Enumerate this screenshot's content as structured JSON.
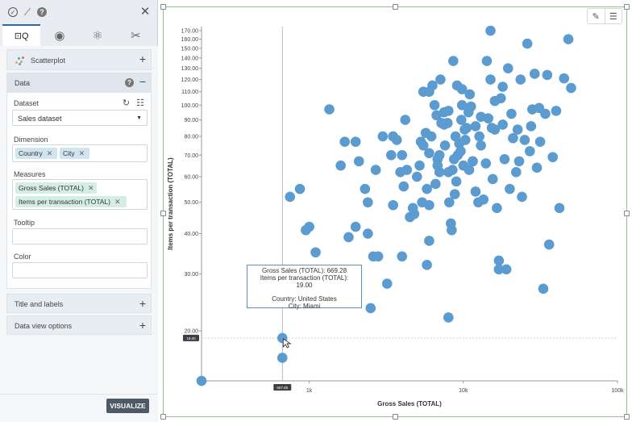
{
  "panel": {
    "tabs": [
      {
        "name": "data-analysis-icon",
        "glyph": "⊡Q"
      },
      {
        "name": "eye-icon",
        "glyph": "◉"
      },
      {
        "name": "atom-icon",
        "glyph": "⚛"
      },
      {
        "name": "tools-icon",
        "glyph": "✂"
      }
    ],
    "scatter": {
      "label": "Scatterplot"
    },
    "data": {
      "header": "Data",
      "dataset_label": "Dataset",
      "dataset_value": "Sales dataset",
      "dimension_label": "Dimension",
      "dimensions": [
        "Country",
        "City"
      ],
      "measures_label": "Measures",
      "measures": [
        "Gross Sales (TOTAL)",
        "Items per transaction (TOTAL)"
      ],
      "tooltip_label": "Tooltip",
      "color_label": "Color"
    },
    "title_labels": "Title and labels",
    "data_view_options": "Data view options",
    "visualize": "VISUALIZE"
  },
  "chart_data": {
    "type": "scatter",
    "xlabel": "Gross Sales (TOTAL)",
    "ylabel": "Items per transaction (TOTAL)",
    "x_scale": "log",
    "y_scale": "log",
    "xlim": [
      200,
      100000
    ],
    "ylim": [
      14,
      175
    ],
    "x_ticks": [
      "1k",
      "10k",
      "100k"
    ],
    "y_ticks": [
      "20.00",
      "30.00",
      "40.00",
      "50.00",
      "60.00",
      "70.00",
      "80.00",
      "90.00",
      "100.00",
      "110.00",
      "120.00",
      "130.00",
      "140.00",
      "150.00",
      "160.00",
      "170.00"
    ],
    "crosshair": {
      "x_label": "667.85",
      "y_label": "19.00"
    },
    "point_color": "#5b9bd0",
    "points": [
      [
        200,
        14.0
      ],
      [
        669.28,
        19.0
      ],
      [
        669,
        16.5
      ],
      [
        750,
        52
      ],
      [
        800,
        30
      ],
      [
        870,
        55
      ],
      [
        950,
        41
      ],
      [
        1000,
        42
      ],
      [
        1100,
        35
      ],
      [
        1350,
        97
      ],
      [
        1600,
        65
      ],
      [
        1800,
        39
      ],
      [
        1700,
        77
      ],
      [
        2000,
        42
      ],
      [
        2000,
        77
      ],
      [
        2100,
        67
      ],
      [
        2300,
        55
      ],
      [
        2400,
        50
      ],
      [
        2500,
        23.5
      ],
      [
        2400,
        40
      ],
      [
        2600,
        34
      ],
      [
        2800,
        34
      ],
      [
        2700,
        63
      ],
      [
        3000,
        80
      ],
      [
        3200,
        28
      ],
      [
        3500,
        49
      ],
      [
        3500,
        80
      ],
      [
        3700,
        78
      ],
      [
        4000,
        70
      ],
      [
        3900,
        62
      ],
      [
        4100,
        56
      ],
      [
        4300,
        63
      ],
      [
        4000,
        34
      ],
      [
        4500,
        45
      ],
      [
        4700,
        48
      ],
      [
        4800,
        46
      ],
      [
        5000,
        60
      ],
      [
        5400,
        50
      ],
      [
        5200,
        65
      ],
      [
        5800,
        55
      ],
      [
        6000,
        38
      ],
      [
        5800,
        32
      ],
      [
        6000,
        49
      ],
      [
        5500,
        75
      ],
      [
        6200,
        80
      ],
      [
        6500,
        100
      ],
      [
        6000,
        110
      ],
      [
        6600,
        57
      ],
      [
        6800,
        65
      ],
      [
        7000,
        62
      ],
      [
        7200,
        88
      ],
      [
        7500,
        95
      ],
      [
        7600,
        75
      ],
      [
        8000,
        62
      ],
      [
        8100,
        50
      ],
      [
        8000,
        22
      ],
      [
        8300,
        43
      ],
      [
        8400,
        41
      ],
      [
        8500,
        63
      ],
      [
        8800,
        53
      ],
      [
        9000,
        58
      ],
      [
        8900,
        80
      ],
      [
        9200,
        70
      ],
      [
        9400,
        76
      ],
      [
        9700,
        90
      ],
      [
        10000,
        65
      ],
      [
        10500,
        85
      ],
      [
        10800,
        95
      ],
      [
        11000,
        108
      ],
      [
        11500,
        67
      ],
      [
        12000,
        54
      ],
      [
        12500,
        50
      ],
      [
        13000,
        75
      ],
      [
        14000,
        66
      ],
      [
        15000,
        120
      ],
      [
        15500,
        59
      ],
      [
        16000,
        103
      ],
      [
        16500,
        48
      ],
      [
        17000,
        33
      ],
      [
        17000,
        31
      ],
      [
        18000,
        87
      ],
      [
        18500,
        68
      ],
      [
        19000,
        31
      ],
      [
        20000,
        55
      ],
      [
        21000,
        79
      ],
      [
        22000,
        62
      ],
      [
        23000,
        67
      ],
      [
        24000,
        52
      ],
      [
        25000,
        78
      ],
      [
        26000,
        155
      ],
      [
        27000,
        72
      ],
      [
        28000,
        97
      ],
      [
        29000,
        125
      ],
      [
        30000,
        64
      ],
      [
        31000,
        98
      ],
      [
        33000,
        27
      ],
      [
        34000,
        94
      ],
      [
        35000,
        124
      ],
      [
        36000,
        37
      ],
      [
        38000,
        69
      ],
      [
        40000,
        96
      ],
      [
        42000,
        48
      ],
      [
        45000,
        121
      ],
      [
        48000,
        160
      ],
      [
        50000,
        113
      ],
      [
        7500,
        87
      ],
      [
        9800,
        100
      ],
      [
        11200,
        99
      ],
      [
        6700,
        93
      ],
      [
        5500,
        110
      ],
      [
        4200,
        90
      ],
      [
        3400,
        70
      ],
      [
        5300,
        77
      ],
      [
        7900,
        88
      ],
      [
        8700,
        68
      ],
      [
        9600,
        72
      ],
      [
        10200,
        84
      ],
      [
        12700,
        80
      ],
      [
        14500,
        91
      ],
      [
        10900,
        63
      ],
      [
        19500,
        130
      ],
      [
        18000,
        114
      ],
      [
        22500,
        84
      ],
      [
        16000,
        84
      ],
      [
        13500,
        51
      ],
      [
        9800,
        112
      ],
      [
        8600,
        137
      ],
      [
        7100,
        120
      ],
      [
        6300,
        115
      ],
      [
        15000,
        170
      ],
      [
        27500,
        86
      ],
      [
        23500,
        120
      ],
      [
        20500,
        94
      ],
      [
        31500,
        77
      ],
      [
        12000,
        86
      ],
      [
        10300,
        78
      ],
      [
        11500,
        67
      ],
      [
        14200,
        137
      ],
      [
        8000,
        96
      ],
      [
        9100,
        115
      ],
      [
        7000,
        70
      ],
      [
        6000,
        71
      ],
      [
        5700,
        82
      ],
      [
        6800,
        68
      ],
      [
        13000,
        92
      ],
      [
        17500,
        105
      ],
      [
        15300,
        85
      ]
    ]
  },
  "tooltip": {
    "line1": "Gross Sales (TOTAL): 669.28",
    "line2": "Items per transaction (TOTAL):",
    "line3": "19.00",
    "line4": "Country: United States",
    "line5": "City: Miami"
  },
  "toolbar": {
    "edit_icon": "✎",
    "menu_icon": "☰"
  }
}
